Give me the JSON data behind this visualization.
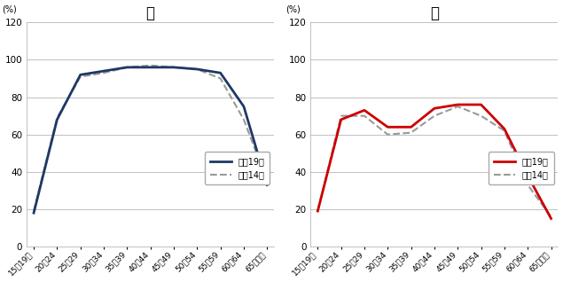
{
  "categories": [
    "15【19歳",
    "20～24",
    "25～29",
    "30～34",
    "35～39",
    "40～44",
    "45～49",
    "50～54",
    "55～59",
    "60～64",
    "65歳以上"
  ],
  "male_2007": [
    18,
    68,
    92,
    94,
    96,
    96,
    96,
    95,
    93,
    75,
    33
  ],
  "male_2002": [
    19,
    69,
    91,
    93,
    96,
    97,
    96,
    95,
    90,
    68,
    35
  ],
  "female_2007": [
    19,
    68,
    73,
    64,
    64,
    74,
    76,
    76,
    63,
    38,
    15
  ],
  "female_2002": [
    19,
    70,
    70,
    60,
    61,
    70,
    75,
    70,
    62,
    33,
    16
  ],
  "title_male": "男",
  "title_female": "女",
  "ylabel": "(%)",
  "legend_2007": "平成19年",
  "legend_2002": "平成14年",
  "ylim": [
    0,
    120
  ],
  "yticks": [
    0,
    20,
    40,
    60,
    80,
    100,
    120
  ],
  "male_line_color": "#1f3864",
  "female_line_color": "#cc0000",
  "dashed_color": "#999999",
  "bg_color": "#ffffff",
  "grid_color": "#c0c0c0"
}
